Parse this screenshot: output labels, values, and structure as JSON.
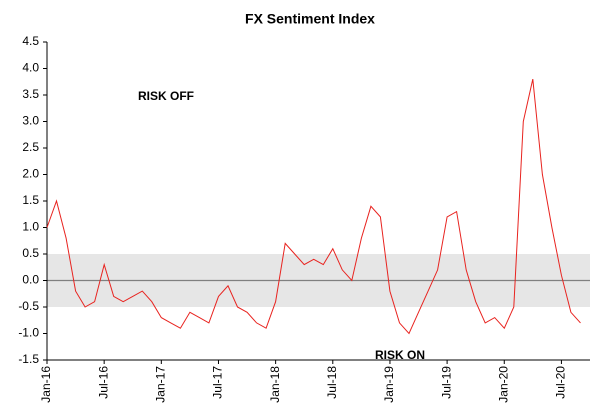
{
  "chart_data": {
    "type": "line",
    "title": "FX Sentiment Index",
    "annotations": [
      "RISK OFF",
      "RISK ON"
    ],
    "x": [
      "2016-01",
      "2016-02",
      "2016-03",
      "2016-04",
      "2016-05",
      "2016-06",
      "2016-07",
      "2016-08",
      "2016-09",
      "2016-10",
      "2016-11",
      "2016-12",
      "2017-01",
      "2017-02",
      "2017-03",
      "2017-04",
      "2017-05",
      "2017-06",
      "2017-07",
      "2017-08",
      "2017-09",
      "2017-10",
      "2017-11",
      "2017-12",
      "2018-01",
      "2018-02",
      "2018-03",
      "2018-04",
      "2018-05",
      "2018-06",
      "2018-07",
      "2018-08",
      "2018-09",
      "2018-10",
      "2018-11",
      "2018-12",
      "2019-01",
      "2019-02",
      "2019-03",
      "2019-04",
      "2019-05",
      "2019-06",
      "2019-07",
      "2019-08",
      "2019-09",
      "2019-10",
      "2019-11",
      "2019-12",
      "2020-01",
      "2020-02",
      "2020-03",
      "2020-04",
      "2020-05",
      "2020-06",
      "2020-07",
      "2020-08",
      "2020-09"
    ],
    "series": [
      {
        "name": "FX Sentiment Index",
        "color": "#e8231f",
        "values": [
          1.0,
          1.5,
          0.8,
          -0.2,
          -0.5,
          -0.4,
          0.3,
          -0.3,
          -0.4,
          -0.3,
          -0.2,
          -0.4,
          -0.7,
          -0.8,
          -0.9,
          -0.6,
          -0.7,
          -0.8,
          -0.3,
          -0.1,
          -0.5,
          -0.6,
          -0.8,
          -0.9,
          -0.4,
          0.7,
          0.5,
          0.3,
          0.4,
          0.3,
          0.6,
          0.2,
          0.0,
          0.8,
          1.4,
          1.2,
          -0.2,
          -0.8,
          -1.0,
          -0.6,
          -0.2,
          0.2,
          1.2,
          1.3,
          0.2,
          -0.4,
          -0.8,
          -0.7,
          -0.9,
          -0.5,
          3.0,
          3.8,
          2.0,
          1.0,
          0.1,
          -0.6,
          -0.8
        ]
      }
    ],
    "xlim": [
      "2016-01",
      "2020-10"
    ],
    "xticks": [
      {
        "value": "2016-01",
        "label": "Jan-16"
      },
      {
        "value": "2016-07",
        "label": "Jul-16"
      },
      {
        "value": "2017-01",
        "label": "Jan-17"
      },
      {
        "value": "2017-07",
        "label": "Jul-17"
      },
      {
        "value": "2018-01",
        "label": "Jan-18"
      },
      {
        "value": "2018-07",
        "label": "Jul-18"
      },
      {
        "value": "2019-01",
        "label": "Jan-19"
      },
      {
        "value": "2019-07",
        "label": "Jul-19"
      },
      {
        "value": "2020-01",
        "label": "Jan-20"
      },
      {
        "value": "2020-07",
        "label": "Jul-20"
      }
    ],
    "ylim": [
      -1.5,
      4.5
    ],
    "yticks": [
      -1.5,
      {
        "value": -1,
        "label": "-1.0"
      },
      -0.5,
      {
        "value": 0,
        "label": "0.0"
      },
      0.5,
      {
        "value": 1,
        "label": "1.0"
      },
      1.5,
      {
        "value": 2,
        "label": "2.0"
      },
      2.5,
      {
        "value": 3,
        "label": "3.0"
      },
      3.5,
      {
        "value": 4,
        "label": "4.0"
      },
      4.5
    ],
    "band": [
      -0.5,
      0.5
    ],
    "band_color": "#e6e6e6",
    "zero_line": true
  }
}
